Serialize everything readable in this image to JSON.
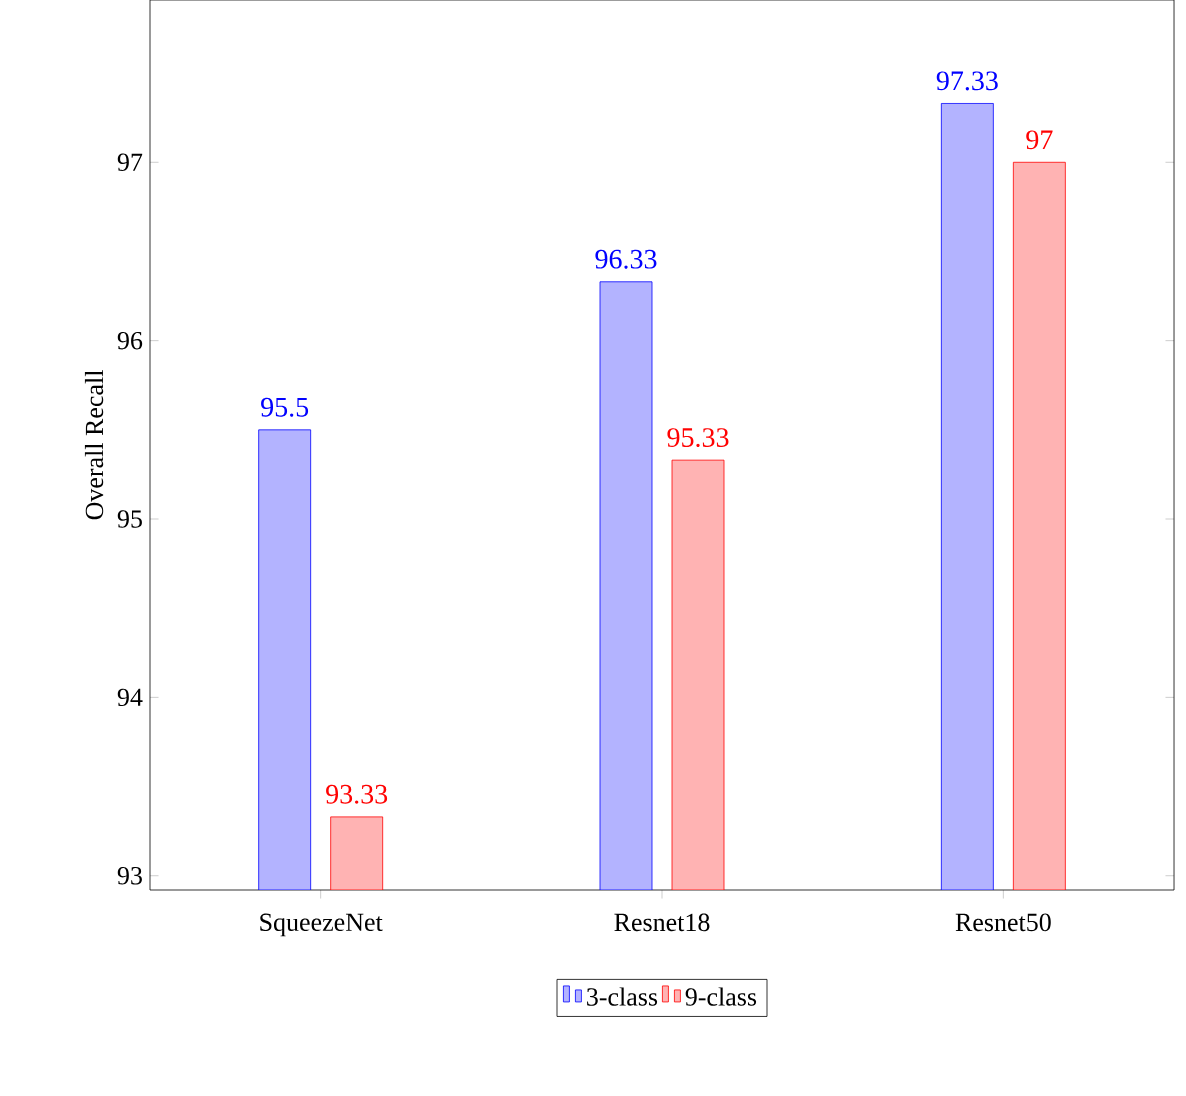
{
  "chart_data": {
    "type": "bar",
    "ylabel": "Overall Recall",
    "categories": [
      "SqueezeNet",
      "Resnet18",
      "Resnet50"
    ],
    "series": [
      {
        "name": "3-class",
        "color": "#b3b3ff",
        "values": [
          95.5,
          96.33,
          97.33
        ]
      },
      {
        "name": "9-class",
        "color": "#ffb3b3",
        "values": [
          93.33,
          95.33,
          97
        ]
      }
    ],
    "ylim": [
      92.92,
      97.91
    ],
    "yticks": [
      93,
      94,
      95,
      96,
      97
    ],
    "data_labels": true,
    "legend": "bottom",
    "grid": false
  }
}
